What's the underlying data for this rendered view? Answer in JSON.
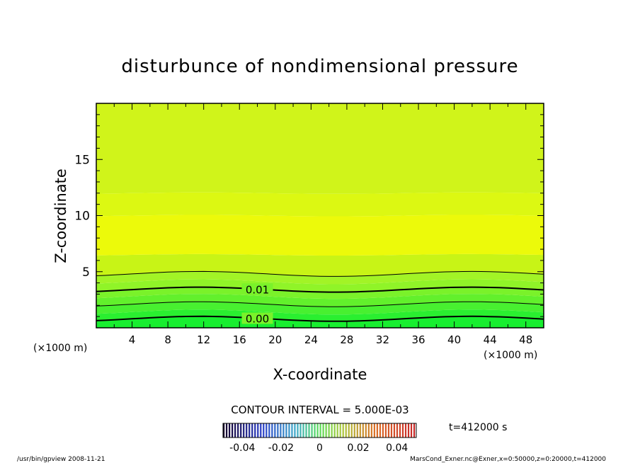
{
  "chart_data": {
    "type": "contour",
    "title": "disturbunce of nondimensional pressure",
    "xlabel": "X-coordinate",
    "ylabel": "Z-coordinate",
    "x_unit": "(×1000 m)",
    "y_unit": "(×1000 m)",
    "xlim": [
      0,
      50
    ],
    "ylim": [
      0,
      20
    ],
    "x_ticks": [
      4,
      8,
      12,
      16,
      20,
      24,
      28,
      32,
      36,
      40,
      44,
      48
    ],
    "y_ticks": [
      5,
      10,
      15
    ],
    "contour_labels": [
      {
        "text": "0.01",
        "x": 18,
        "z": 3.4
      },
      {
        "text": "0.00",
        "x": 18,
        "z": 0.8
      }
    ],
    "contour_interval_text": "CONTOUR INTERVAL = 5.000E-03",
    "colorbar": {
      "ticks": [
        "-0.04",
        "-0.02",
        "0",
        "0.02",
        "0.04"
      ],
      "range": [
        -0.05,
        0.05
      ]
    },
    "fill_levels_z": [
      {
        "z0": 0,
        "z1": 0.8,
        "color": "#18ee30"
      },
      {
        "z0": 0.8,
        "z1": 1.4,
        "color": "#2aef30"
      },
      {
        "z0": 1.4,
        "z1": 2.1,
        "color": "#48f030"
      },
      {
        "z0": 2.1,
        "z1": 2.8,
        "color": "#62f02c"
      },
      {
        "z0": 2.8,
        "z1": 3.4,
        "color": "#7af22a"
      },
      {
        "z0": 3.4,
        "z1": 4.1,
        "color": "#90f428"
      },
      {
        "z0": 4.1,
        "z1": 4.8,
        "color": "#a2f426"
      },
      {
        "z0": 4.8,
        "z1": 6.5,
        "color": "#c8f416"
      },
      {
        "z0": 6.5,
        "z1": 10,
        "color": "#ecfa0a"
      },
      {
        "z0": 10,
        "z1": 12,
        "color": "#dcf812"
      },
      {
        "z0": 12,
        "z1": 20,
        "color": "#d0f41a"
      }
    ],
    "contour_lines_z": [
      0.8,
      2.1,
      3.4,
      4.8
    ]
  },
  "time_label": "t=412000 s",
  "footer_left": "/usr/bin/gpview  2008-11-21",
  "footer_right": "MarsCond_Exner.nc@Exner,x=0:50000,z=0:20000,t=412000"
}
